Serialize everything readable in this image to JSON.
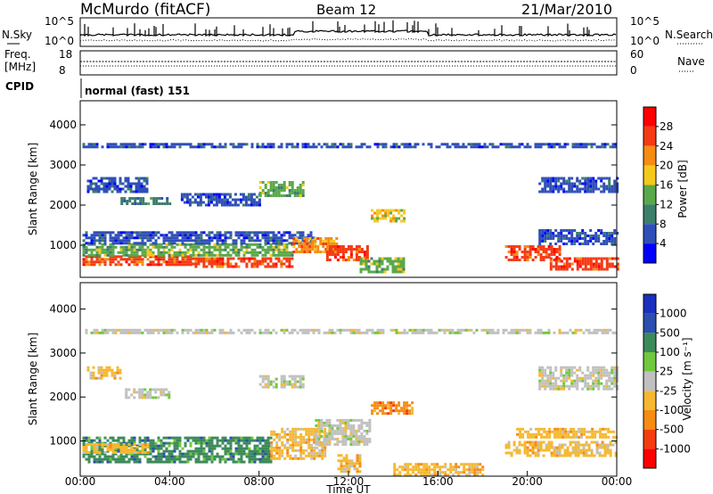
{
  "header": {
    "station": "McMurdo (fitACF)",
    "beam": "Beam 12",
    "date": "21/Mar/2010"
  },
  "noise_panel": {
    "left_label": "N.Sky",
    "right_label": "N.Search",
    "left_ticks": [
      "10^5",
      "10^0"
    ],
    "right_ticks": [
      "10^5",
      "10^0"
    ]
  },
  "freq_panel": {
    "left_label_1": "Freq.",
    "left_label_2": "[MHz]",
    "right_label": "Nave",
    "left_ticks": [
      "18",
      "8"
    ],
    "right_ticks": [
      "60",
      "0"
    ]
  },
  "cpid": {
    "label": "CPID",
    "text": "normal (fast) 151"
  },
  "colors": {
    "power": [
      "#0000ff",
      "#2f4fb8",
      "#3c7e6a",
      "#5aa84a",
      "#f5c81e",
      "#f58c14",
      "#f53a14",
      "#ff0000"
    ],
    "velocity": [
      "#ff0000",
      "#f53c10",
      "#f58c14",
      "#f5b830",
      "#c0c0c0",
      "#70c83c",
      "#3c8a5a",
      "#2a4fae",
      "#1a2fbe"
    ]
  },
  "chart_data": [
    {
      "type": "heatmap",
      "name_panel": "power",
      "ylabel": "Slant Range [km]",
      "y_ticks": [
        "1000",
        "2000",
        "3000",
        "4000"
      ],
      "ylim": [
        200,
        4600
      ],
      "xlim": [
        0,
        24
      ],
      "colorbar_label": "Power [dB]",
      "colorbar_ticks": [
        "4",
        "8",
        "12",
        "16",
        "20",
        "24",
        "28"
      ],
      "bands": [
        {
          "x": [
            0.1,
            5.0
          ],
          "y": [
            500,
            750
          ],
          "level": 6
        },
        {
          "x": [
            5.0,
            9.5
          ],
          "y": [
            450,
            700
          ],
          "level": 6
        },
        {
          "x": [
            0.1,
            9.5
          ],
          "y": [
            750,
            1050
          ],
          "level": 3
        },
        {
          "x": [
            0.1,
            10.5
          ],
          "y": [
            1050,
            1350
          ],
          "level": 1
        },
        {
          "x": [
            0.3,
            3.0
          ],
          "y": [
            2350,
            2700
          ],
          "level": 1
        },
        {
          "x": [
            1.8,
            4.0
          ],
          "y": [
            2000,
            2200
          ],
          "level": 2
        },
        {
          "x": [
            4.5,
            8.0
          ],
          "y": [
            2000,
            2300
          ],
          "level": 1
        },
        {
          "x": [
            8.0,
            10.0
          ],
          "y": [
            2200,
            2600
          ],
          "level": 3
        },
        {
          "x": [
            9.5,
            11.5
          ],
          "y": [
            800,
            1200
          ],
          "level": 5
        },
        {
          "x": [
            11.0,
            12.8
          ],
          "y": [
            600,
            1000
          ],
          "level": 6
        },
        {
          "x": [
            12.5,
            14.5
          ],
          "y": [
            300,
            700
          ],
          "level": 3
        },
        {
          "x": [
            13.0,
            14.5
          ],
          "y": [
            1600,
            1900
          ],
          "level": 4
        },
        {
          "x": [
            19.0,
            21.5
          ],
          "y": [
            600,
            1000
          ],
          "level": 6
        },
        {
          "x": [
            21.0,
            24.0
          ],
          "y": [
            400,
            700
          ],
          "level": 6
        },
        {
          "x": [
            20.5,
            24.0
          ],
          "y": [
            1000,
            1400
          ],
          "level": 1
        },
        {
          "x": [
            20.5,
            24.0
          ],
          "y": [
            2300,
            2700
          ],
          "level": 1
        },
        {
          "x": [
            0.1,
            24.0
          ],
          "y": [
            3450,
            3550
          ],
          "level": 1
        }
      ]
    },
    {
      "type": "heatmap",
      "name_panel": "velocity",
      "ylabel": "Slant Range [km]",
      "xlabel": "Time UT",
      "x_ticks": [
        "00:00",
        "04:00",
        "08:00",
        "12:00",
        "16:00",
        "20:00",
        "00:00"
      ],
      "y_ticks": [
        "1000",
        "2000",
        "3000",
        "4000"
      ],
      "ylim": [
        200,
        4600
      ],
      "xlim": [
        0,
        24
      ],
      "colorbar_label": "Velocity [m s⁻¹]",
      "colorbar_ticks": [
        "1000",
        "500",
        "100",
        "25",
        "-25",
        "-100",
        "-500",
        "-1000"
      ],
      "bands": [
        {
          "x": [
            0.1,
            8.5
          ],
          "y": [
            500,
            1100
          ],
          "level": 6
        },
        {
          "x": [
            0.1,
            3.0
          ],
          "y": [
            750,
            950
          ],
          "level": 3
        },
        {
          "x": [
            8.5,
            11.0
          ],
          "y": [
            600,
            1300
          ],
          "level": 3
        },
        {
          "x": [
            10.5,
            13.0
          ],
          "y": [
            900,
            1500
          ],
          "level": 4
        },
        {
          "x": [
            11.5,
            12.5
          ],
          "y": [
            300,
            700
          ],
          "level": 3
        },
        {
          "x": [
            13.0,
            14.8
          ],
          "y": [
            1600,
            1900
          ],
          "level": 2
        },
        {
          "x": [
            14.0,
            18.0
          ],
          "y": [
            250,
            500
          ],
          "level": 3
        },
        {
          "x": [
            2.0,
            4.0
          ],
          "y": [
            2000,
            2200
          ],
          "level": 4
        },
        {
          "x": [
            8.0,
            10.0
          ],
          "y": [
            2200,
            2500
          ],
          "level": 4
        },
        {
          "x": [
            19.0,
            24.0
          ],
          "y": [
            650,
            1000
          ],
          "level": 3
        },
        {
          "x": [
            19.5,
            24.0
          ],
          "y": [
            1100,
            1300
          ],
          "level": 3
        },
        {
          "x": [
            20.5,
            24.0
          ],
          "y": [
            2200,
            2700
          ],
          "level": 4
        },
        {
          "x": [
            0.3,
            1.8
          ],
          "y": [
            2450,
            2700
          ],
          "level": 3
        },
        {
          "x": [
            0.1,
            24.0
          ],
          "y": [
            3450,
            3550
          ],
          "level": 4
        }
      ]
    }
  ]
}
